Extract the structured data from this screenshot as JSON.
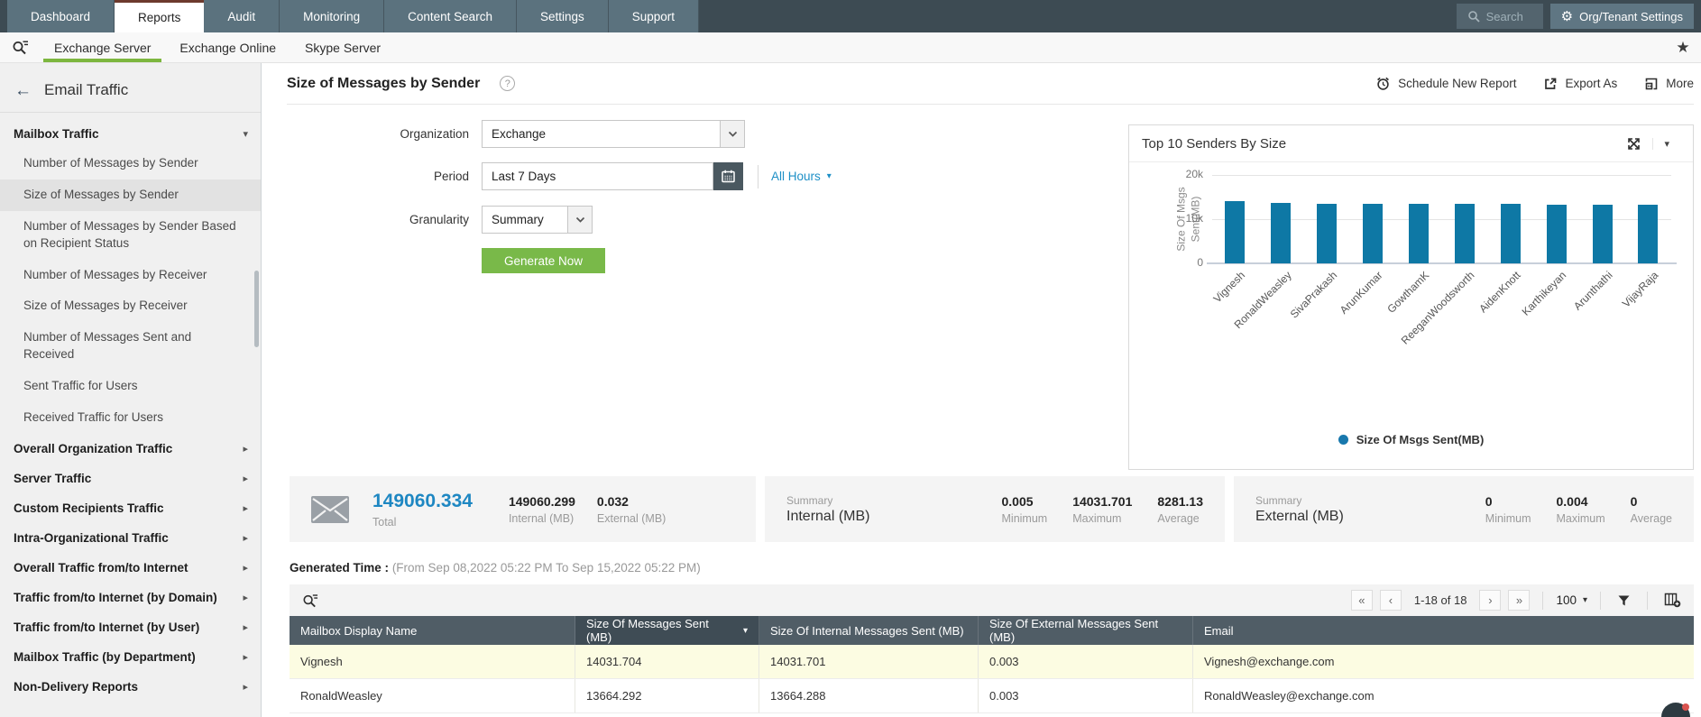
{
  "topnav": {
    "tabs": [
      {
        "label": "Dashboard"
      },
      {
        "label": "Reports"
      },
      {
        "label": "Audit"
      },
      {
        "label": "Monitoring"
      },
      {
        "label": "Content Search"
      },
      {
        "label": "Settings"
      },
      {
        "label": "Support"
      }
    ],
    "active_tab": "Reports",
    "search_placeholder": "Search",
    "org_settings_label": "Org/Tenant Settings"
  },
  "subnav": {
    "tabs": [
      {
        "label": "Exchange Server"
      },
      {
        "label": "Exchange Online"
      },
      {
        "label": "Skype Server"
      }
    ],
    "active_tab": "Exchange Server"
  },
  "sidebar": {
    "back_label": "Email Traffic",
    "group_label": "Mailbox Traffic",
    "group_items": [
      "Number of Messages by Sender",
      "Size of Messages by Sender",
      "Number of Messages by Sender Based on Recipient Status",
      "Number of Messages by Receiver",
      "Size of Messages by Receiver",
      "Number of Messages Sent and Received",
      "Sent Traffic for Users",
      "Received Traffic for Users"
    ],
    "selected_item": "Size of Messages by Sender",
    "collapsed_sections": [
      "Overall Organization Traffic",
      "Server Traffic",
      "Custom Recipients Traffic",
      "Intra-Organizational Traffic",
      "Overall Traffic from/to Internet",
      "Traffic from/to Internet (by Domain)",
      "Traffic from/to Internet (by User)",
      "Mailbox Traffic (by Department)",
      "Non-Delivery Reports"
    ]
  },
  "report": {
    "title": "Size of Messages by Sender",
    "actions": {
      "schedule": "Schedule New Report",
      "export": "Export As",
      "more": "More"
    },
    "form": {
      "organization_label": "Organization",
      "organization_value": "Exchange",
      "period_label": "Period",
      "period_value": "Last 7 Days",
      "hours_filter_label": "All Hours",
      "granularity_label": "Granularity",
      "granularity_value": "Summary",
      "generate_label": "Generate Now"
    }
  },
  "chart_data": {
    "type": "bar",
    "title": "Top 10 Senders By Size",
    "ylabel": "Size Of Msgs Sent(MB)",
    "ylabel_lines": [
      "Size Of Msgs",
      "Sent(MB)"
    ],
    "categories": [
      "Vignesh",
      "RonaldWeasley",
      "SivaPrakash",
      "ArunKumar",
      "GowthamK",
      "ReeganWoodsworth",
      "AidenKnott",
      "Karthikeyan",
      "Arunthathi",
      "VijayRaja"
    ],
    "values": [
      14031.704,
      13664.292,
      13500,
      13460,
      13430,
      13410,
      13390,
      13370,
      13350,
      13330
    ],
    "ylim": [
      0,
      20000
    ],
    "yticks": [
      {
        "value": 0,
        "label": "0"
      },
      {
        "value": 10000,
        "label": "10k"
      },
      {
        "value": 20000,
        "label": "20k"
      }
    ],
    "grid": true,
    "bar_color": "#0e78a5",
    "legend_position": "bottom",
    "legend": [
      {
        "label": "Size Of Msgs Sent(MB)",
        "color": "#1878ad"
      }
    ]
  },
  "summary": {
    "total": {
      "value": "149060.334",
      "label": "Total",
      "internal_value": "149060.299",
      "internal_label": "Internal (MB)",
      "external_value": "0.032",
      "external_label": "External (MB)"
    },
    "internal": {
      "title": "Summary",
      "subtitle": "Internal (MB)",
      "stats": [
        {
          "value": "0.005",
          "label": "Minimum"
        },
        {
          "value": "14031.701",
          "label": "Maximum"
        },
        {
          "value": "8281.13",
          "label": "Average"
        }
      ]
    },
    "external": {
      "title": "Summary",
      "subtitle": "External (MB)",
      "stats": [
        {
          "value": "0",
          "label": "Minimum"
        },
        {
          "value": "0.004",
          "label": "Maximum"
        },
        {
          "value": "0",
          "label": "Average"
        }
      ]
    }
  },
  "generated": {
    "label": "Generated Time :",
    "range": "(From Sep 08,2022 05:22 PM To Sep 15,2022 05:22 PM)"
  },
  "table": {
    "pagination": {
      "range": "1-18 of 18",
      "page_size": "100"
    },
    "columns": [
      {
        "label": "Mailbox Display Name",
        "sorted": false
      },
      {
        "label": "Size Of Messages Sent (MB)",
        "sorted": true
      },
      {
        "label": "Size Of Internal Messages Sent (MB)",
        "sorted": false
      },
      {
        "label": "Size Of External Messages Sent (MB)",
        "sorted": false
      },
      {
        "label": "Email",
        "sorted": false
      }
    ],
    "rows": [
      {
        "highlight": true,
        "cells": [
          "Vignesh",
          "14031.704",
          "14031.701",
          "0.003",
          "Vignesh@exchange.com"
        ]
      },
      {
        "highlight": false,
        "cells": [
          "RonaldWeasley",
          "13664.292",
          "13664.288",
          "0.003",
          "RonaldWeasley@exchange.com"
        ]
      }
    ]
  },
  "colors": {
    "accent_green": "#7db63f",
    "link_blue": "#1d8fc6",
    "bar_blue": "#0e78a5",
    "total_blue": "#1e87c2",
    "table_header": "#505d66",
    "row_highlight": "#fcfce2"
  }
}
